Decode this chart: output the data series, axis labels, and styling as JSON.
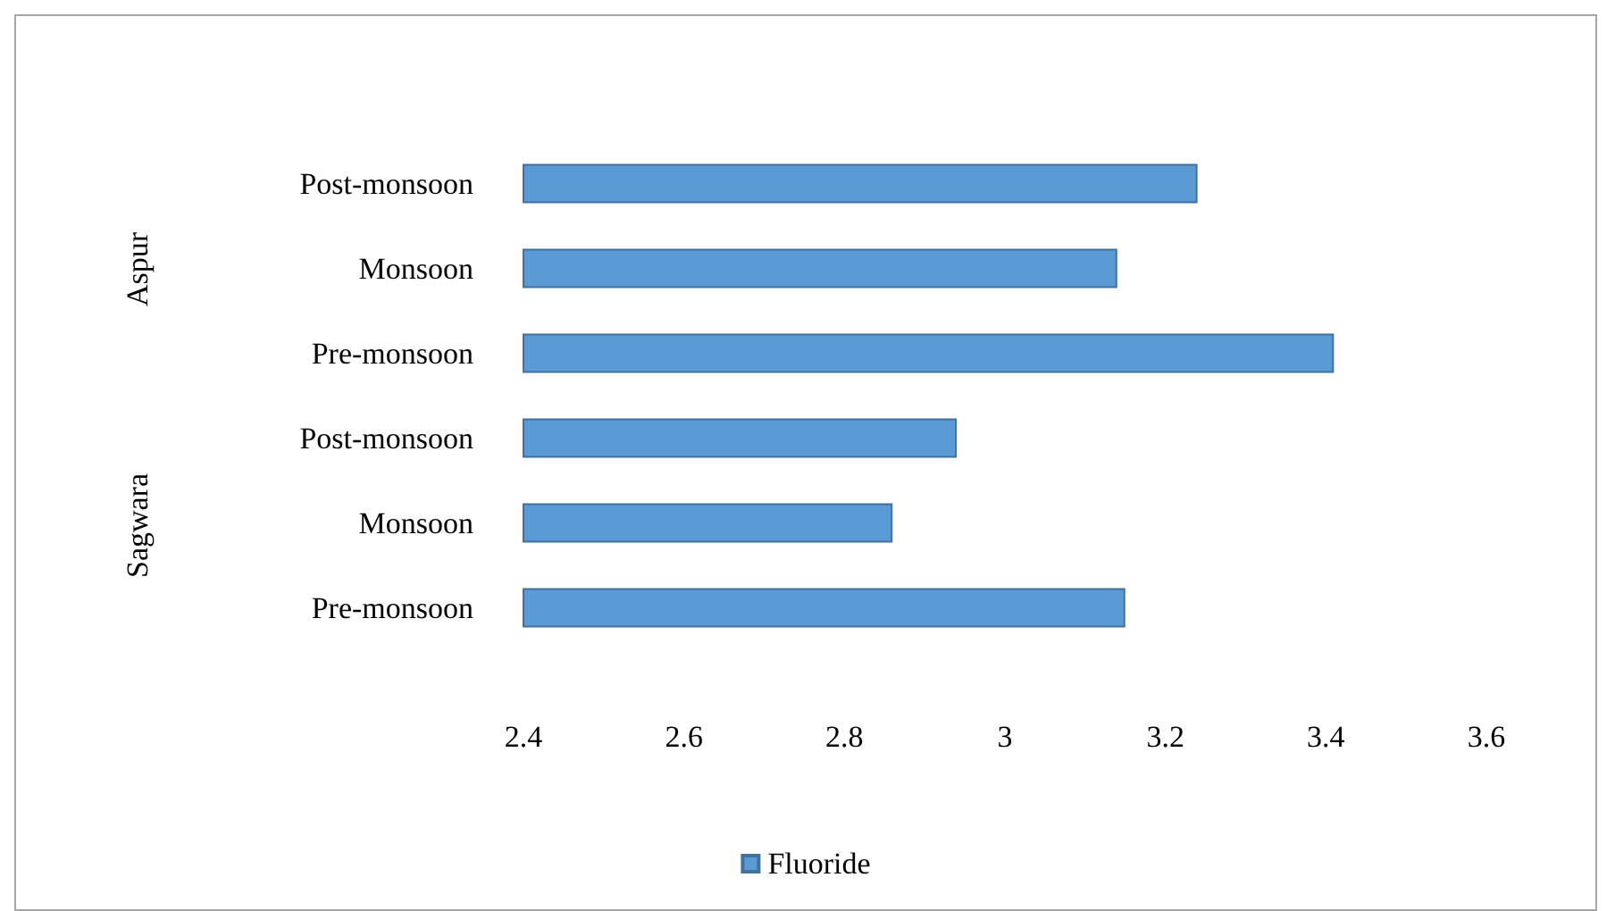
{
  "chart_data": {
    "type": "bar",
    "orientation": "horizontal",
    "categories": [
      "Post-monsoon",
      "Monsoon",
      "Pre-monsoon",
      "Post-monsoon",
      "Monsoon",
      "Pre-monsoon"
    ],
    "series": [
      {
        "name": "Fluoride",
        "color": "#5b9bd5",
        "values": [
          3.24,
          3.14,
          3.41,
          2.94,
          2.86,
          3.15
        ]
      }
    ],
    "xlim": [
      2.4,
      3.6
    ],
    "xticks": [
      2.4,
      2.6,
      2.8,
      3,
      3.2,
      3.4,
      3.6
    ],
    "annotations": [
      "Aspur",
      "Sagwara"
    ],
    "legend": "bottom",
    "grid": false
  }
}
